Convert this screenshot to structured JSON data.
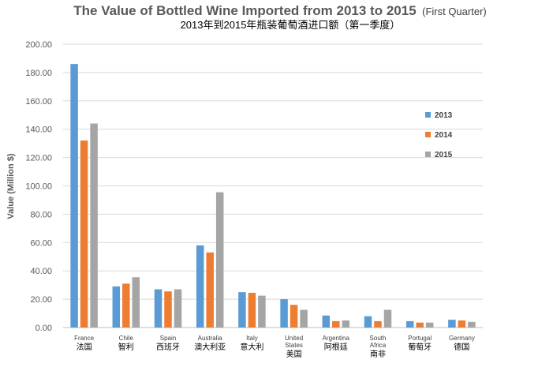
{
  "chart_data": {
    "type": "bar",
    "title_main": "The Value of Bottled Wine Imported from 2013 to 2015",
    "title_suffix": "(First Quarter)",
    "subtitle": "2013年到2015年瓶装葡萄酒进口额（第一季度）",
    "xlabel": "",
    "ylabel": "Value (Million $)",
    "ylim": [
      0,
      200
    ],
    "yticks": [
      "0.00",
      "20.00",
      "40.00",
      "60.00",
      "80.00",
      "100.00",
      "120.00",
      "140.00",
      "160.00",
      "180.00",
      "200.00"
    ],
    "grid": true,
    "legend_position": "right",
    "categories": [
      {
        "en": "France",
        "cn": "法国"
      },
      {
        "en": "Chile",
        "cn": "智利"
      },
      {
        "en": "Spain",
        "cn": "西班牙"
      },
      {
        "en": "Australia",
        "cn": "澳大利亚"
      },
      {
        "en": "Italy",
        "cn": "意大利"
      },
      {
        "en": "United States",
        "cn": "美国"
      },
      {
        "en": "Argentina",
        "cn": "阿根廷"
      },
      {
        "en": "South Africa",
        "cn": "南非"
      },
      {
        "en": "Portugal",
        "cn": "葡萄牙"
      },
      {
        "en": "Germany",
        "cn": "德国"
      }
    ],
    "series": [
      {
        "name": "2013",
        "color": "#5B9BD5",
        "values": [
          186,
          29,
          27,
          58,
          25,
          20,
          8.5,
          8,
          4.5,
          5.5
        ]
      },
      {
        "name": "2014",
        "color": "#ED7D31",
        "values": [
          132,
          31,
          25.5,
          53,
          24.5,
          16,
          4.5,
          4.5,
          3.5,
          5
        ]
      },
      {
        "name": "2015",
        "color": "#A5A5A5",
        "values": [
          144,
          35.5,
          27,
          95.5,
          22.5,
          12.5,
          5,
          12.5,
          3.5,
          4
        ]
      }
    ]
  }
}
